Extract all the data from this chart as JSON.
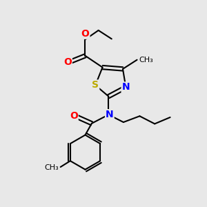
{
  "background_color": "#e8e8e8",
  "atom_colors": {
    "C": "#000000",
    "N": "#0000ff",
    "O": "#ff0000",
    "S": "#bbaa00"
  },
  "font_size": 9,
  "linewidth": 1.5
}
